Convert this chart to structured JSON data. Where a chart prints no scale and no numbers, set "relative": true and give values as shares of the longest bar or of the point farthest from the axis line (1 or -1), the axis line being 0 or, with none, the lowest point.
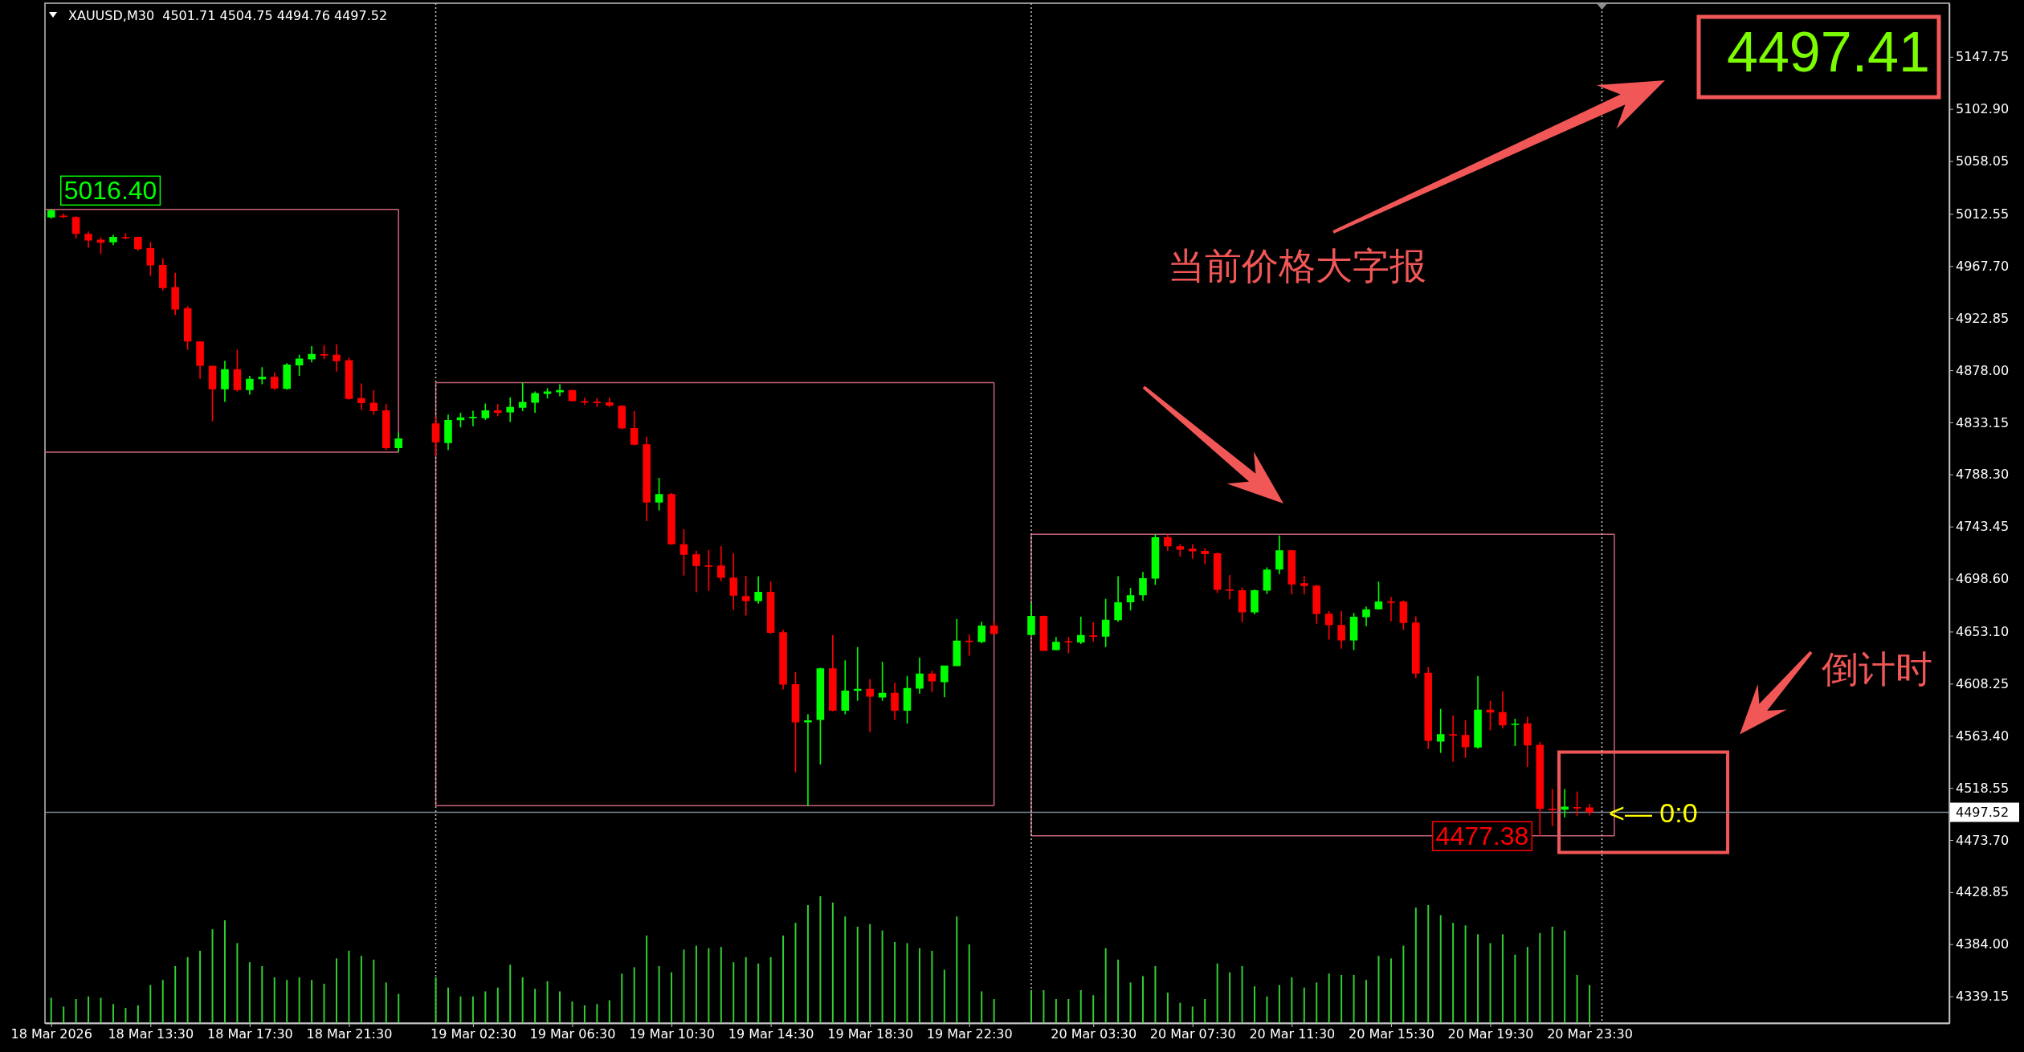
{
  "chart_data": [
    {
      "type": "candlestick",
      "title": "XAUUSD,M30  4501.71 4504.75 4494.76 4497.52",
      "x": [
        "2026-03-18T09:30",
        "2026-03-18T10:00",
        "2026-03-18T10:30",
        "2026-03-18T11:00",
        "2026-03-18T11:30",
        "2026-03-18T12:00",
        "2026-03-18T12:30",
        "2026-03-18T13:00",
        "2026-03-18T13:30",
        "2026-03-18T14:00",
        "2026-03-18T14:30",
        "2026-03-18T15:00",
        "2026-03-18T15:30",
        "2026-03-18T16:00",
        "2026-03-18T16:30",
        "2026-03-18T17:00",
        "2026-03-18T17:30",
        "2026-03-18T18:00",
        "2026-03-18T18:30",
        "2026-03-18T19:00",
        "2026-03-18T19:30",
        "2026-03-18T20:00",
        "2026-03-18T20:30",
        "2026-03-18T21:00",
        "2026-03-18T21:30",
        "2026-03-18T22:00",
        "2026-03-18T22:30",
        "2026-03-18T23:00",
        "2026-03-18T23:30",
        "2026-03-19T01:00",
        "2026-03-19T01:30",
        "2026-03-19T02:00",
        "2026-03-19T02:30",
        "2026-03-19T03:00",
        "2026-03-19T03:30",
        "2026-03-19T04:00",
        "2026-03-19T04:30",
        "2026-03-19T05:00",
        "2026-03-19T05:30",
        "2026-03-19T06:00",
        "2026-03-19T06:30",
        "2026-03-19T07:00",
        "2026-03-19T07:30",
        "2026-03-19T08:00",
        "2026-03-19T08:30",
        "2026-03-19T09:00",
        "2026-03-19T09:30",
        "2026-03-19T10:00",
        "2026-03-19T10:30",
        "2026-03-19T11:00",
        "2026-03-19T11:30",
        "2026-03-19T12:00",
        "2026-03-19T12:30",
        "2026-03-19T13:00",
        "2026-03-19T13:30",
        "2026-03-19T14:00",
        "2026-03-19T14:30",
        "2026-03-19T15:00",
        "2026-03-19T15:30",
        "2026-03-19T16:00",
        "2026-03-19T16:30",
        "2026-03-19T17:00",
        "2026-03-19T17:30",
        "2026-03-19T18:00",
        "2026-03-19T18:30",
        "2026-03-19T19:00",
        "2026-03-19T19:30",
        "2026-03-19T20:00",
        "2026-03-19T20:30",
        "2026-03-19T21:00",
        "2026-03-19T21:30",
        "2026-03-19T22:00",
        "2026-03-19T22:30",
        "2026-03-19T23:00",
        "2026-03-19T23:30",
        "2026-03-20T01:00",
        "2026-03-20T01:30",
        "2026-03-20T02:00",
        "2026-03-20T02:30",
        "2026-03-20T03:00",
        "2026-03-20T03:30",
        "2026-03-20T04:00",
        "2026-03-20T04:30",
        "2026-03-20T05:00",
        "2026-03-20T05:30",
        "2026-03-20T06:00",
        "2026-03-20T06:30",
        "2026-03-20T07:00",
        "2026-03-20T07:30",
        "2026-03-20T08:00",
        "2026-03-20T08:30",
        "2026-03-20T09:00",
        "2026-03-20T09:30",
        "2026-03-20T10:00",
        "2026-03-20T10:30",
        "2026-03-20T11:00",
        "2026-03-20T11:30",
        "2026-03-20T12:00",
        "2026-03-20T12:30",
        "2026-03-20T13:00",
        "2026-03-20T13:30",
        "2026-03-20T14:00",
        "2026-03-20T14:30",
        "2026-03-20T15:00",
        "2026-03-20T15:30",
        "2026-03-20T16:00",
        "2026-03-20T16:30",
        "2026-03-20T17:00",
        "2026-03-20T17:30",
        "2026-03-20T18:00",
        "2026-03-20T18:30",
        "2026-03-20T19:00",
        "2026-03-20T19:30",
        "2026-03-20T20:00",
        "2026-03-20T20:30",
        "2026-03-20T21:00",
        "2026-03-20T21:30",
        "2026-03-20T22:00",
        "2026-03-20T22:30",
        "2026-03-20T23:00",
        "2026-03-20T23:30"
      ],
      "ohlc": [
        [
          5009.5,
          5016.4,
          5008.5,
          5015.8
        ],
        [
          5011.0,
          5013.0,
          5009.0,
          5010.5
        ],
        [
          5009.8,
          5010.5,
          4991.4,
          4995.4
        ],
        [
          4995.4,
          4997.5,
          4983.4,
          4989.6
        ],
        [
          4990.3,
          4992.5,
          4978.0,
          4987.8
        ],
        [
          4988.1,
          4994.6,
          4985.6,
          4992.8
        ],
        [
          4992.6,
          4996.1,
          4990.7,
          4992.0
        ],
        [
          4992.8,
          4993.0,
          4980.9,
          4982.3
        ],
        [
          4983.1,
          4988.5,
          4959.2,
          4968.2
        ],
        [
          4968.6,
          4974.4,
          4946.6,
          4948.7
        ],
        [
          4949.5,
          4961.8,
          4925.6,
          4930.3
        ],
        [
          4931.4,
          4933.2,
          4895.6,
          4902.8
        ],
        [
          4902.8,
          4903.0,
          4870.6,
          4881.8
        ],
        [
          4881.8,
          4882.0,
          4834.1,
          4861.6
        ],
        [
          4861.6,
          4886.2,
          4850.8,
          4878.9
        ],
        [
          4878.9,
          4895.6,
          4859.8,
          4860.9
        ],
        [
          4860.9,
          4873.2,
          4856.9,
          4870.6
        ],
        [
          4870.3,
          4880.7,
          4865.9,
          4872.4
        ],
        [
          4872.4,
          4876.1,
          4860.9,
          4862.3
        ],
        [
          4862.0,
          4884.0,
          4861.2,
          4882.9
        ],
        [
          4882.2,
          4891.3,
          4873.2,
          4888.0
        ],
        [
          4887.3,
          4898.8,
          4884.8,
          4892.0
        ],
        [
          4891.8,
          4899.6,
          4887.6,
          4891.3
        ],
        [
          4891.3,
          4900.3,
          4876.8,
          4885.8
        ],
        [
          4886.6,
          4888.7,
          4852.6,
          4853.3
        ],
        [
          4854.0,
          4866.7,
          4843.9,
          4849.7
        ],
        [
          4850.0,
          4860.9,
          4839.6,
          4842.8
        ],
        [
          4843.5,
          4849.0,
          4809.2,
          4811.0
        ],
        [
          4811.0,
          4824.4,
          4807.5,
          4819.3
        ],
        [
          4832.3,
          4837.7,
          4804.5,
          4816.0
        ],
        [
          4815.3,
          4839.9,
          4809.2,
          4835.2
        ],
        [
          4835.0,
          4841.4,
          4828.7,
          4837.4
        ],
        [
          4837.5,
          4843.2,
          4829.8,
          4837.9
        ],
        [
          4836.7,
          4849.3,
          4835.2,
          4843.5
        ],
        [
          4843.5,
          4848.9,
          4838.5,
          4841.4
        ],
        [
          4841.7,
          4854.7,
          4833.4,
          4846.4
        ],
        [
          4845.7,
          4867.4,
          4842.8,
          4850.7
        ],
        [
          4850.0,
          4859.8,
          4841.4,
          4858.3
        ],
        [
          4857.6,
          4862.7,
          4853.6,
          4859.8
        ],
        [
          4859.1,
          4865.9,
          4855.8,
          4860.9
        ],
        [
          4860.9,
          4861.2,
          4851.0,
          4851.5
        ],
        [
          4851.4,
          4854.4,
          4848.2,
          4851.0
        ],
        [
          4851.0,
          4854.0,
          4846.4,
          4850.7
        ],
        [
          4850.4,
          4854.4,
          4846.4,
          4847.5
        ],
        [
          4847.5,
          4848.0,
          4827.3,
          4828.0
        ],
        [
          4828.3,
          4842.8,
          4813.5,
          4813.9
        ],
        [
          4814.2,
          4820.7,
          4748.1,
          4764.2
        ],
        [
          4764.2,
          4785.4,
          4757.3,
          4771.4
        ],
        [
          4771.4,
          4772.3,
          4727.8,
          4728.3
        ],
        [
          4728.2,
          4741.2,
          4701.2,
          4719.3
        ],
        [
          4719.5,
          4722.7,
          4686.9,
          4709.6
        ],
        [
          4710.0,
          4723.2,
          4688.2,
          4709.9
        ],
        [
          4709.9,
          4726.7,
          4696.6,
          4699.3
        ],
        [
          4699.5,
          4720.5,
          4671.6,
          4684.0
        ],
        [
          4683.7,
          4701.0,
          4666.9,
          4679.3
        ],
        [
          4679.3,
          4700.5,
          4677.1,
          4687.2
        ],
        [
          4687.2,
          4696.1,
          4651.1,
          4652.1
        ],
        [
          4652.6,
          4654.6,
          4603.3,
          4607.5
        ],
        [
          4607.7,
          4618.1,
          4531.9,
          4574.9
        ],
        [
          4574.9,
          4582.0,
          4503.3,
          4576.6
        ],
        [
          4577.1,
          4622.0,
          4538.6,
          4621.5
        ],
        [
          4621.5,
          4649.9,
          4584.5,
          4585.0
        ],
        [
          4585.0,
          4628.4,
          4581.8,
          4602.3
        ],
        [
          4602.0,
          4639.8,
          4593.4,
          4603.8
        ],
        [
          4603.8,
          4612.2,
          4566.5,
          4597.1
        ],
        [
          4596.4,
          4627.2,
          4593.4,
          4600.3
        ],
        [
          4600.3,
          4609.2,
          4577.1,
          4585.0
        ],
        [
          4585.0,
          4614.9,
          4573.9,
          4604.5
        ],
        [
          4604.0,
          4630.7,
          4599.6,
          4616.9
        ],
        [
          4616.9,
          4619.3,
          4601.1,
          4610.2
        ],
        [
          4609.5,
          4623.8,
          4596.6,
          4623.8
        ],
        [
          4623.3,
          4664.0,
          4623.3,
          4645.2
        ],
        [
          4645.2,
          4650.7,
          4632.4,
          4644.7
        ],
        [
          4644.0,
          4661.5,
          4643.0,
          4658.3
        ],
        [
          4658.3,
          4662.0,
          4650.9,
          4650.9
        ],
        [
          4650.1,
          4677.4,
          4650.1,
          4666.6
        ],
        [
          4666.6,
          4666.8,
          4636.3,
          4636.4
        ],
        [
          4637.1,
          4648.4,
          4636.8,
          4644.3
        ],
        [
          4644.8,
          4648.4,
          4634.4,
          4644.4
        ],
        [
          4643.8,
          4665.9,
          4642.4,
          4650.1
        ],
        [
          4649.7,
          4661.2,
          4644.4,
          4649.4
        ],
        [
          4648.8,
          4681.3,
          4639.7,
          4663.2
        ],
        [
          4662.9,
          4700.7,
          4661.5,
          4678.3
        ],
        [
          4678.3,
          4690.7,
          4671.2,
          4684.3
        ],
        [
          4684.3,
          4704.4,
          4679.6,
          4699.0
        ],
        [
          4698.7,
          4736.9,
          4693.3,
          4734.2
        ],
        [
          4734.2,
          4736.9,
          4722.5,
          4726.5
        ],
        [
          4726.5,
          4728.2,
          4717.5,
          4723.5
        ],
        [
          4724.5,
          4728.2,
          4715.8,
          4722.1
        ],
        [
          4722.5,
          4724.8,
          4711.1,
          4719.8
        ],
        [
          4720.5,
          4721.1,
          4686.3,
          4689.0
        ],
        [
          4689.3,
          4701.7,
          4680.9,
          4689.0
        ],
        [
          4688.6,
          4690.7,
          4661.2,
          4669.6
        ],
        [
          4669.6,
          4689.3,
          4667.9,
          4688.6
        ],
        [
          4688.3,
          4708.4,
          4685.6,
          4706.4
        ],
        [
          4706.4,
          4735.9,
          4702.4,
          4723.1
        ],
        [
          4723.1,
          4723.4,
          4685.0,
          4693.7
        ],
        [
          4694.7,
          4701.0,
          4685.0,
          4692.3
        ],
        [
          4692.7,
          4693.3,
          4659.8,
          4668.2
        ],
        [
          4668.5,
          4670.6,
          4646.1,
          4658.5
        ],
        [
          4658.8,
          4670.6,
          4638.4,
          4645.4
        ],
        [
          4645.4,
          4669.2,
          4637.1,
          4665.9
        ],
        [
          4665.5,
          4674.6,
          4657.8,
          4672.2
        ],
        [
          4672.2,
          4696.0,
          4672.0,
          4678.9
        ],
        [
          4678.9,
          4683.0,
          4661.8,
          4678.6
        ],
        [
          4678.9,
          4679.9,
          4654.5,
          4660.5
        ],
        [
          4660.8,
          4666.2,
          4613.0,
          4617.0
        ],
        [
          4617.6,
          4622.7,
          4551.9,
          4559.0
        ],
        [
          4558.3,
          4586.5,
          4548.6,
          4564.7
        ],
        [
          4564.7,
          4580.8,
          4540.9,
          4564.3
        ],
        [
          4564.0,
          4576.8,
          4544.3,
          4553.6
        ],
        [
          4553.3,
          4614.9,
          4552.3,
          4585.8
        ],
        [
          4585.8,
          4593.5,
          4568.0,
          4583.5
        ],
        [
          4583.8,
          4601.5,
          4569.7,
          4572.4
        ],
        [
          4573.4,
          4578.1,
          4554.6,
          4573.8
        ],
        [
          4574.1,
          4579.8,
          4536.6,
          4555.0
        ],
        [
          4555.6,
          4558.0,
          4477.38,
          4500.4
        ],
        [
          4500.6,
          4517.5,
          4485.6,
          4500.4
        ],
        [
          4499.7,
          4517.5,
          4493.0,
          4502.4
        ],
        [
          4502.0,
          4515.4,
          4494.3,
          4501.7
        ],
        [
          4501.71,
          4504.75,
          4494.76,
          4497.52
        ]
      ],
      "colors": [
        "#00ff00",
        "#ff0000",
        "#ff0000",
        "#ff0000",
        "#ff0000",
        "#00ff00",
        "#ff0000",
        "#ff0000",
        "#ff0000",
        "#ff0000",
        "#ff0000",
        "#ff0000",
        "#ff0000",
        "#ff0000",
        "#00ff00",
        "#ff0000",
        "#00ff00",
        "#00ff00",
        "#ff0000",
        "#00ff00",
        "#00ff00",
        "#00ff00",
        "#ff0000",
        "#ff0000",
        "#ff0000",
        "#ff0000",
        "#ff0000",
        "#ff0000",
        "#00ff00",
        "#ff0000",
        "#00ff00",
        "#00ff00",
        "#00ff00",
        "#00ff00",
        "#ff0000",
        "#00ff00",
        "#00ff00",
        "#00ff00",
        "#00ff00",
        "#00ff00",
        "#ff0000",
        "#ff0000",
        "#ff0000",
        "#ff0000",
        "#ff0000",
        "#ff0000",
        "#ff0000",
        "#00ff00",
        "#ff0000",
        "#ff0000",
        "#ff0000",
        "#ff0000",
        "#ff0000",
        "#ff0000",
        "#ff0000",
        "#00ff00",
        "#ff0000",
        "#ff0000",
        "#ff0000",
        "#00ff00",
        "#00ff00",
        "#ff0000",
        "#00ff00",
        "#00ff00",
        "#ff0000",
        "#00ff00",
        "#ff0000",
        "#00ff00",
        "#00ff00",
        "#ff0000",
        "#00ff00",
        "#00ff00",
        "#ff0000",
        "#00ff00",
        "#ff0000",
        "#00ff00",
        "#ff0000",
        "#00ff00",
        "#ff0000",
        "#00ff00",
        "#ff0000",
        "#00ff00",
        "#00ff00",
        "#00ff00",
        "#00ff00",
        "#00ff00",
        "#ff0000",
        "#ff0000",
        "#ff0000",
        "#ff0000",
        "#ff0000",
        "#ff0000",
        "#ff0000",
        "#00ff00",
        "#00ff00",
        "#00ff00",
        "#ff0000",
        "#ff0000",
        "#ff0000",
        "#ff0000",
        "#ff0000",
        "#00ff00",
        "#00ff00",
        "#00ff00",
        "#ff0000",
        "#ff0000",
        "#ff0000",
        "#ff0000",
        "#00ff00",
        "#ff0000",
        "#ff0000",
        "#00ff00",
        "#ff0000",
        "#ff0000",
        "#00ff00",
        "#ff0000",
        "#ff0000",
        "#ff0000",
        "#00ff00",
        "#ff0000",
        "#ff0000"
      ],
      "series": [
        {
          "type": "line",
          "color": "#c8647a",
          "x": [
            "2026-03-18T09:15",
            "2026-03-18T23:30"
          ],
          "values": [
            5016.4,
            5016.4
          ]
        },
        {
          "type": "line",
          "color": "#c8647a",
          "x": [
            "2026-03-18T09:15",
            "2026-03-18T23:30"
          ],
          "values": [
            4807.5,
            4807.5
          ]
        },
        {
          "type": "line",
          "color": "#c8647a",
          "x": [
            "2026-03-19T01:00",
            "2026-03-19T23:30"
          ],
          "values": [
            4867.4,
            4867.4
          ]
        },
        {
          "type": "line",
          "color": "#c8647a",
          "x": [
            "2026-03-19T01:00",
            "2026-03-19T23:30"
          ],
          "values": [
            4503.3,
            4503.3
          ]
        },
        {
          "type": "line",
          "color": "#c8647a",
          "x": [
            "2026-03-20T01:00",
            "2026-03-21T00:30"
          ],
          "values": [
            4736.9,
            4736.9
          ]
        },
        {
          "type": "line",
          "color": "#c8647a",
          "x": [
            "2026-03-20T01:00",
            "2026-03-21T00:30"
          ],
          "values": [
            4477.38,
            4477.38
          ]
        }
      ],
      "xlim": [
        "2026-03-18T09:15",
        "2026-03-21T14:00"
      ],
      "xticks": [
        {
          "value": "2026-03-18T09:30",
          "label": "18 Mar 2026"
        },
        {
          "value": "2026-03-18T13:30",
          "label": "18 Mar 13:30"
        },
        {
          "value": "2026-03-18T17:30",
          "label": "18 Mar 17:30"
        },
        {
          "value": "2026-03-18T21:30",
          "label": "18 Mar 21:30"
        },
        {
          "value": "2026-03-19T02:30",
          "label": "19 Mar 02:30"
        },
        {
          "value": "2026-03-19T06:30",
          "label": "19 Mar 06:30"
        },
        {
          "value": "2026-03-19T10:30",
          "label": "19 Mar 10:30"
        },
        {
          "value": "2026-03-19T14:30",
          "label": "19 Mar 14:30"
        },
        {
          "value": "2026-03-19T18:30",
          "label": "19 Mar 18:30"
        },
        {
          "value": "2026-03-19T22:30",
          "label": "19 Mar 22:30"
        },
        {
          "value": "2026-03-20T03:30",
          "label": "20 Mar 03:30"
        },
        {
          "value": "2026-03-20T07:30",
          "label": "20 Mar 07:30"
        },
        {
          "value": "2026-03-20T11:30",
          "label": "20 Mar 11:30"
        },
        {
          "value": "2026-03-20T15:30",
          "label": "20 Mar 15:30"
        },
        {
          "value": "2026-03-20T19:30",
          "label": "20 Mar 19:30"
        },
        {
          "value": "2026-03-20T23:30",
          "label": "20 Mar 23:30"
        }
      ],
      "ylim": [
        4316.1,
        5193.9
      ],
      "yticks": [
        5147.75,
        {
          "value": 5102.9,
          "label": "5102.90"
        },
        5058.05,
        5012.55,
        {
          "value": 4967.7,
          "label": "4967.70"
        },
        4922.85,
        {
          "value": 4878,
          "label": "4878.00"
        },
        4833.15,
        {
          "value": 4788.3,
          "label": "4788.30"
        },
        4743.45,
        {
          "value": 4698.6,
          "label": "4698.60"
        },
        {
          "value": 4653.1,
          "label": "4653.10"
        },
        4608.25,
        {
          "value": 4563.4,
          "label": "4563.40"
        },
        4518.55,
        {
          "value": 4473.7,
          "label": "4473.70"
        },
        4428.85,
        {
          "value": 4384,
          "label": "4384.00"
        },
        4339.15
      ],
      "ref_lines": [
        {
          "axis": "y",
          "value": 4497.52,
          "label": "4497.52",
          "color": "#7a8896"
        },
        {
          "axis": "x",
          "value": "2026-03-19T01:00",
          "color": "#c8c8c8",
          "line_style": "dotted"
        },
        {
          "axis": "x",
          "value": "2026-03-20T01:00",
          "color": "#c8c8c8",
          "line_style": "dotted"
        },
        {
          "axis": "x",
          "value": "2026-03-21T00:00",
          "color": "#c8c8c8",
          "line_style": "dotted"
        }
      ],
      "annotations": [
        {
          "text": "5016.40",
          "x": "2026-03-18T09:30",
          "y": 5016.4
        },
        {
          "text": "4477.38",
          "x": "2026-03-20T21:30",
          "y": 4477.38
        },
        "4497.41",
        "当前价格大字报",
        "倒计时",
        {
          "text": "<— 0:0",
          "x": "2026-03-20T23:30",
          "y": 4497.52
        }
      ]
    },
    {
      "type": "bar",
      "relative": true,
      "tick_labels": false,
      "color": "#32cd32",
      "x": [
        "2026-03-18T09:30",
        "2026-03-18T10:00",
        "2026-03-18T10:30",
        "2026-03-18T11:00",
        "2026-03-18T11:30",
        "2026-03-18T12:00",
        "2026-03-18T12:30",
        "2026-03-18T13:00",
        "2026-03-18T13:30",
        "2026-03-18T14:00",
        "2026-03-18T14:30",
        "2026-03-18T15:00",
        "2026-03-18T15:30",
        "2026-03-18T16:00",
        "2026-03-18T16:30",
        "2026-03-18T17:00",
        "2026-03-18T17:30",
        "2026-03-18T18:00",
        "2026-03-18T18:30",
        "2026-03-18T19:00",
        "2026-03-18T19:30",
        "2026-03-18T20:00",
        "2026-03-18T20:30",
        "2026-03-18T21:00",
        "2026-03-18T21:30",
        "2026-03-18T22:00",
        "2026-03-18T22:30",
        "2026-03-18T23:00",
        "2026-03-18T23:30",
        "2026-03-19T01:00",
        "2026-03-19T01:30",
        "2026-03-19T02:00",
        "2026-03-19T02:30",
        "2026-03-19T03:00",
        "2026-03-19T03:30",
        "2026-03-19T04:00",
        "2026-03-19T04:30",
        "2026-03-19T05:00",
        "2026-03-19T05:30",
        "2026-03-19T06:00",
        "2026-03-19T06:30",
        "2026-03-19T07:00",
        "2026-03-19T07:30",
        "2026-03-19T08:00",
        "2026-03-19T08:30",
        "2026-03-19T09:00",
        "2026-03-19T09:30",
        "2026-03-19T10:00",
        "2026-03-19T10:30",
        "2026-03-19T11:00",
        "2026-03-19T11:30",
        "2026-03-19T12:00",
        "2026-03-19T12:30",
        "2026-03-19T13:00",
        "2026-03-19T13:30",
        "2026-03-19T14:00",
        "2026-03-19T14:30",
        "2026-03-19T15:00",
        "2026-03-19T15:30",
        "2026-03-19T16:00",
        "2026-03-19T16:30",
        "2026-03-19T17:00",
        "2026-03-19T17:30",
        "2026-03-19T18:00",
        "2026-03-19T18:30",
        "2026-03-19T19:00",
        "2026-03-19T19:30",
        "2026-03-19T20:00",
        "2026-03-19T20:30",
        "2026-03-19T21:00",
        "2026-03-19T21:30",
        "2026-03-19T22:00",
        "2026-03-19T22:30",
        "2026-03-19T23:00",
        "2026-03-19T23:30",
        "2026-03-20T01:00",
        "2026-03-20T01:30",
        "2026-03-20T02:00",
        "2026-03-20T02:30",
        "2026-03-20T03:00",
        "2026-03-20T03:30",
        "2026-03-20T04:00",
        "2026-03-20T04:30",
        "2026-03-20T05:00",
        "2026-03-20T05:30",
        "2026-03-20T06:00",
        "2026-03-20T06:30",
        "2026-03-20T07:00",
        "2026-03-20T07:30",
        "2026-03-20T08:00",
        "2026-03-20T08:30",
        "2026-03-20T09:00",
        "2026-03-20T09:30",
        "2026-03-20T10:00",
        "2026-03-20T10:30",
        "2026-03-20T11:00",
        "2026-03-20T11:30",
        "2026-03-20T12:00",
        "2026-03-20T12:30",
        "2026-03-20T13:00",
        "2026-03-20T13:30",
        "2026-03-20T14:00",
        "2026-03-20T14:30",
        "2026-03-20T15:00",
        "2026-03-20T15:30",
        "2026-03-20T16:00",
        "2026-03-20T16:30",
        "2026-03-20T17:00",
        "2026-03-20T17:30",
        "2026-03-20T18:00",
        "2026-03-20T18:30",
        "2026-03-20T19:00",
        "2026-03-20T19:30",
        "2026-03-20T20:00",
        "2026-03-20T20:30",
        "2026-03-20T21:00",
        "2026-03-20T21:30",
        "2026-03-20T22:00",
        "2026-03-20T22:30",
        "2026-03-20T23:00",
        "2026-03-20T23:30"
      ],
      "xlim": [
        "2026-03-18T09:15",
        "2026-03-21T14:00"
      ],
      "values": [
        0.2,
        0.13,
        0.19,
        0.21,
        0.2,
        0.15,
        0.12,
        0.14,
        0.3,
        0.34,
        0.45,
        0.52,
        0.57,
        0.74,
        0.81,
        0.63,
        0.48,
        0.45,
        0.36,
        0.34,
        0.36,
        0.34,
        0.31,
        0.51,
        0.57,
        0.53,
        0.5,
        0.32,
        0.23,
        0.36,
        0.28,
        0.21,
        0.21,
        0.25,
        0.28,
        0.46,
        0.36,
        0.27,
        0.33,
        0.25,
        0.17,
        0.14,
        0.15,
        0.18,
        0.39,
        0.44,
        0.69,
        0.45,
        0.4,
        0.58,
        0.61,
        0.59,
        0.6,
        0.48,
        0.52,
        0.47,
        0.52,
        0.69,
        0.79,
        0.93,
        1,
        0.95,
        0.84,
        0.76,
        0.78,
        0.73,
        0.64,
        0.63,
        0.59,
        0.57,
        0.42,
        0.84,
        0.62,
        0.25,
        0.19,
        0.26,
        0.26,
        0.19,
        0.19,
        0.26,
        0.22,
        0.59,
        0.5,
        0.32,
        0.37,
        0.45,
        0.24,
        0.16,
        0.13,
        0.19,
        0.47,
        0.4,
        0.45,
        0.29,
        0.21,
        0.3,
        0.36,
        0.28,
        0.32,
        0.39,
        0.38,
        0.38,
        0.34,
        0.53,
        0.51,
        0.61,
        0.91,
        0.93,
        0.85,
        0.79,
        0.77,
        0.7,
        0.63,
        0.7,
        0.54,
        0.6,
        0.71,
        0.76,
        0.73,
        0.38,
        0.3
      ]
    }
  ]
}
